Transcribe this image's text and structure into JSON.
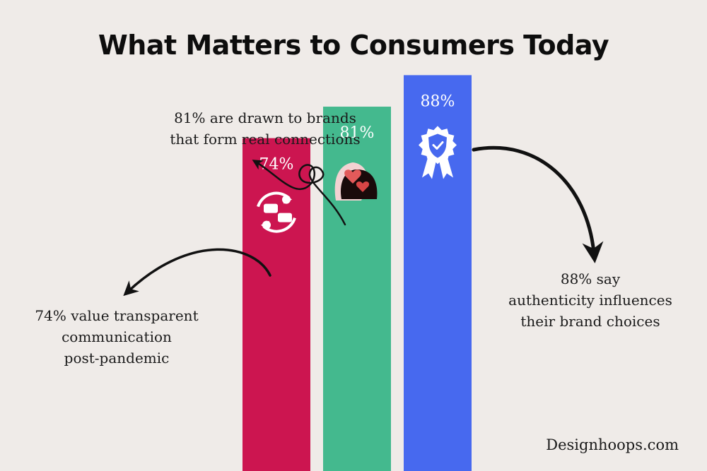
{
  "chart_data": {
    "type": "bar",
    "title": "What Matters to Consumers Today",
    "categories": [
      "74%",
      "81%",
      "88%"
    ],
    "values": [
      74,
      81,
      88
    ],
    "data_labels": [
      "74%",
      "81%",
      "88%"
    ],
    "colors": [
      "#cc1550",
      "#44b98e",
      "#4769ef"
    ],
    "icons": [
      "chat-exchange-icon",
      "heart-profiles-icon",
      "verified-badge-icon"
    ],
    "ylim": [
      0,
      100
    ],
    "grid": false
  },
  "annotations": {
    "left": [
      "74% value transparent",
      "communication",
      "post-pandemic"
    ],
    "top": [
      "81% are drawn to brands",
      "that form real connections"
    ],
    "right": [
      "88% say",
      "authenticity influences",
      "their brand choices"
    ]
  },
  "brand": "Designhoops.com"
}
